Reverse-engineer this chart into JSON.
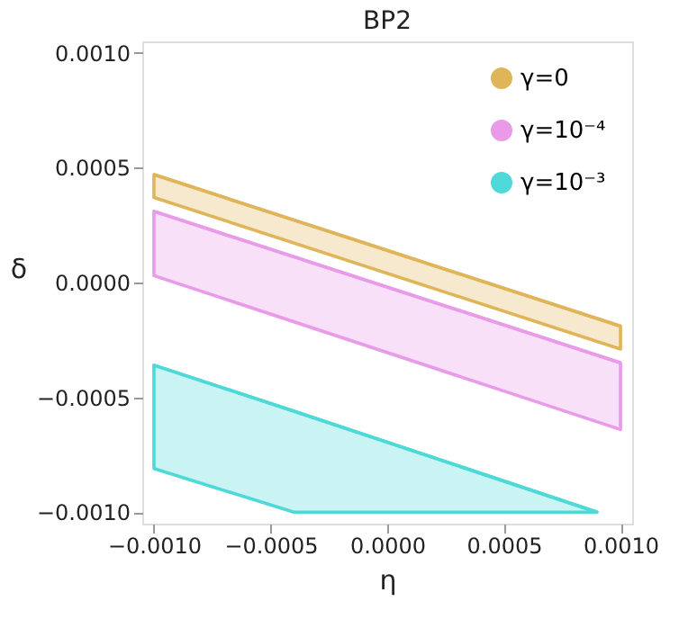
{
  "chart_data": {
    "type": "line",
    "title": "BP2",
    "xlabel": "η",
    "ylabel": "δ",
    "xlim": [
      -0.00105,
      0.00105
    ],
    "ylim": [
      -0.00105,
      0.00105
    ],
    "xticks": [
      {
        "value": -0.001,
        "label": "−0.0010"
      },
      {
        "value": -0.0005,
        "label": "−0.0005"
      },
      {
        "value": 0,
        "label": "0.0000"
      },
      {
        "value": 0.0005,
        "label": "0.0005"
      },
      {
        "value": 0.001,
        "label": "0.0010"
      }
    ],
    "yticks": [
      {
        "value": -0.001,
        "label": "−0.0010"
      },
      {
        "value": -0.0005,
        "label": "−0.0005"
      },
      {
        "value": 0,
        "label": "0.0000"
      },
      {
        "value": 0.0005,
        "label": "0.0005"
      },
      {
        "value": 0.001,
        "label": "0.0010"
      }
    ],
    "grid": false,
    "legend": "top right",
    "marker": "none",
    "series": [
      {
        "name": "γ=0",
        "color": "#e0b55a",
        "x": [
          -0.001,
          0.001
        ],
        "values": [
          0.00047,
          -0.00019
        ],
        "lower": [
          0.00037,
          -0.00029
        ],
        "upper": [
          0.00047,
          -0.00019
        ]
      },
      {
        "name": "γ=10⁻⁴",
        "color": "#e99ae9",
        "x": [
          -0.001,
          0.001
        ],
        "values": [
          0.00031,
          -0.00035
        ],
        "lower": [
          3e-05,
          -0.00064
        ],
        "upper": [
          0.00031,
          -0.00035
        ]
      },
      {
        "name": "γ=10⁻³",
        "color": "#4fd8d8",
        "x": [
          -0.001,
          -0.0004,
          0.0009
        ],
        "values": [
          -0.00036,
          -0.00056,
          -0.001
        ],
        "lower": [
          -0.00081,
          -0.001,
          -0.001
        ],
        "upper": [
          -0.00036,
          -0.00056,
          -0.001
        ]
      }
    ]
  }
}
